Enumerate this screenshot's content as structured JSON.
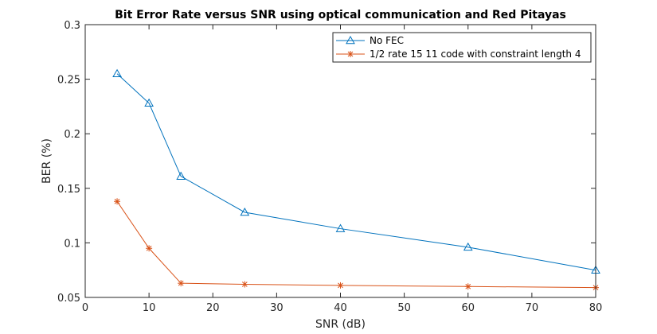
{
  "chart_data": {
    "type": "line",
    "title": "Bit Error Rate versus SNR using optical communication and Red Pitayas",
    "xlabel": "SNR (dB)",
    "ylabel": "BER (%)",
    "xlim": [
      0,
      80
    ],
    "ylim": [
      0.05,
      0.3
    ],
    "xticks": [
      0,
      10,
      20,
      30,
      40,
      50,
      60,
      70,
      80
    ],
    "yticks": [
      0.05,
      0.1,
      0.15,
      0.2,
      0.25,
      0.3
    ],
    "xtick_labels": [
      "0",
      "10",
      "20",
      "30",
      "40",
      "50",
      "60",
      "70",
      "80"
    ],
    "ytick_labels": [
      "0.05",
      "0.1",
      "0.15",
      "0.2",
      "0.25",
      "0.3"
    ],
    "grid": false,
    "legend_position": "top-right",
    "series": [
      {
        "name": "No FEC",
        "color": "#0072BD",
        "marker": "triangle",
        "x": [
          5,
          10,
          15,
          25,
          40,
          60,
          80
        ],
        "y": [
          0.255,
          0.228,
          0.161,
          0.128,
          0.113,
          0.096,
          0.075
        ]
      },
      {
        "name": "1/2 rate 15 11 code with constraint length 4",
        "color": "#D95319",
        "marker": "asterisk",
        "x": [
          5,
          10,
          15,
          25,
          40,
          60,
          80
        ],
        "y": [
          0.138,
          0.095,
          0.063,
          0.062,
          0.061,
          0.06,
          0.059
        ]
      }
    ]
  }
}
